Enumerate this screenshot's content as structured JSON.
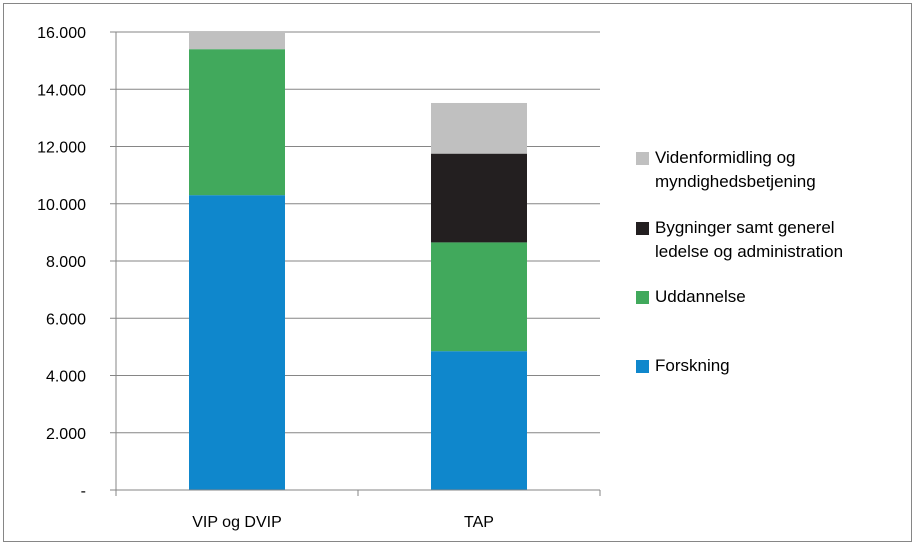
{
  "chart_data": {
    "type": "bar",
    "stacked": true,
    "categories": [
      "VIP og DVIP",
      "TAP"
    ],
    "series": [
      {
        "name": "Forskning",
        "color": "#0f87cc",
        "values": [
          10300,
          4850
        ]
      },
      {
        "name": "Uddannelse",
        "color": "#41a95c",
        "values": [
          5100,
          3800
        ]
      },
      {
        "name": "Bygninger samt generel\nledelse og administration",
        "color": "#231f20",
        "values": [
          0,
          3100
        ]
      },
      {
        "name": "Videnformidling og\nmyndighedsbetjening",
        "color": "#c0c0c0",
        "values": [
          600,
          1770
        ]
      }
    ],
    "yticks": [
      "-",
      "2.000",
      "4.000",
      "6.000",
      "8.000",
      "10.000",
      "12.000",
      "14.000",
      "16.000"
    ],
    "ylim": [
      0,
      16000
    ],
    "grid": true,
    "legend_position": "right",
    "legend_order": [
      3,
      2,
      1,
      0
    ],
    "title": "",
    "xlabel": "",
    "ylabel": ""
  }
}
